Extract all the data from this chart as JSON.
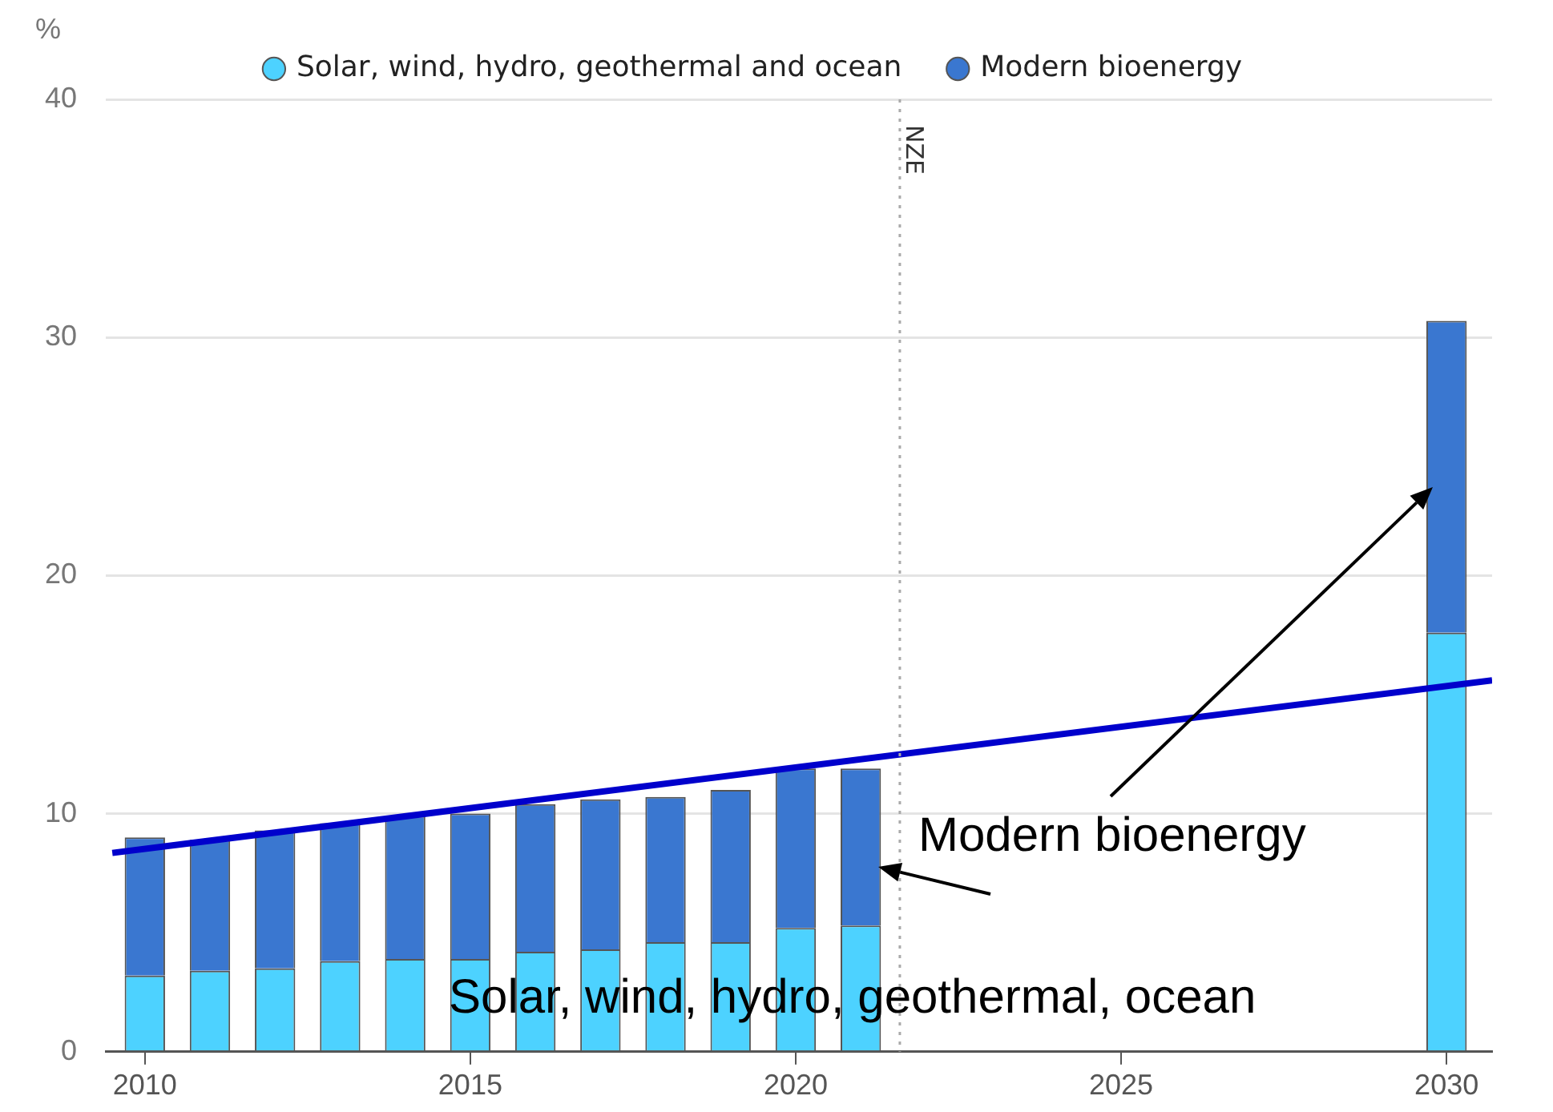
{
  "chart_data": {
    "type": "bar",
    "stacked": true,
    "ylabel": "%",
    "x": [
      2010,
      2011,
      2012,
      2013,
      2014,
      2015,
      2016,
      2017,
      2018,
      2019,
      2020,
      2021,
      2030
    ],
    "series": [
      {
        "name": "Solar, wind, hydro, geothermal and ocean",
        "color": "#4dd2ff",
        "values": [
          3.2,
          3.4,
          3.5,
          3.8,
          3.9,
          3.9,
          4.2,
          4.3,
          4.6,
          4.6,
          5.2,
          5.3,
          17.6
        ]
      },
      {
        "name": "Modern bioenergy",
        "color": "#3a77d0",
        "values": [
          5.8,
          5.5,
          5.8,
          5.8,
          6.0,
          6.1,
          6.2,
          6.3,
          6.1,
          6.4,
          6.7,
          6.6,
          13.1
        ]
      },
      {
        "type": "line",
        "color": "#0000cc",
        "x": [
          2009.5,
          2030.7
        ],
        "values": [
          8.35,
          15.6
        ]
      }
    ],
    "xlim": [
      2009.4,
      2030.7
    ],
    "xticks": [
      2010,
      2015,
      2020,
      2025,
      2030
    ],
    "ylim": [
      0,
      40
    ],
    "yticks": [
      0,
      10,
      20,
      30,
      40
    ],
    "grid": "y",
    "legend": "top",
    "ref_lines": [
      {
        "axis": "x",
        "value": 2021.6,
        "label": "NZE",
        "color": "#aaaaaa",
        "line_style": "dotted"
      }
    ],
    "annotations": [
      "Modern bioenergy",
      "Solar, wind, hydro, geothermal, ocean"
    ]
  }
}
